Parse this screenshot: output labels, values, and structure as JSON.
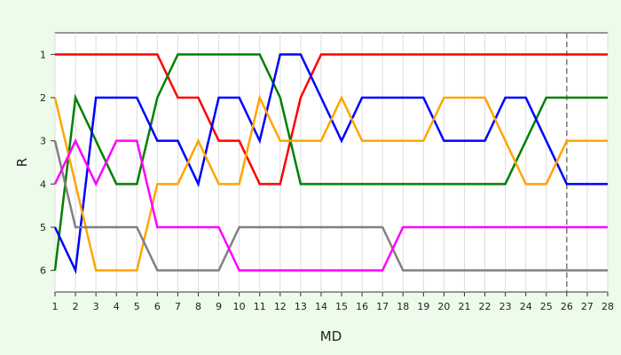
{
  "chart_data": {
    "type": "line",
    "title": "",
    "xlabel": "MD",
    "ylabel": "R",
    "x": [
      1,
      2,
      3,
      4,
      5,
      6,
      7,
      8,
      9,
      10,
      11,
      12,
      13,
      14,
      15,
      16,
      17,
      18,
      19,
      20,
      21,
      22,
      23,
      24,
      25,
      26,
      27,
      28
    ],
    "xlim": [
      1,
      28
    ],
    "ylim": [
      6.5,
      0.5
    ],
    "y_inverted": true,
    "yticks": [
      1,
      2,
      3,
      4,
      5,
      6
    ],
    "grid": {
      "vertical": true,
      "horizontal": false
    },
    "vline": {
      "x": 26,
      "style": "dashed",
      "color": "#777777"
    },
    "series": [
      {
        "color": "#ff0000",
        "values": [
          1,
          1,
          1,
          1,
          1,
          1,
          2,
          2,
          3,
          3,
          4,
          4,
          2,
          1,
          1,
          1,
          1,
          1,
          1,
          1,
          1,
          1,
          1,
          1,
          1,
          1,
          1,
          1
        ]
      },
      {
        "color": "#008000",
        "values": [
          6,
          2,
          3,
          4,
          4,
          2,
          1,
          1,
          1,
          1,
          1,
          2,
          4,
          4,
          4,
          4,
          4,
          4,
          4,
          4,
          4,
          4,
          4,
          3,
          2,
          2,
          2,
          2
        ]
      },
      {
        "color": "#0000ff",
        "values": [
          5,
          6,
          2,
          2,
          2,
          3,
          3,
          4,
          2,
          2,
          3,
          1,
          1,
          2,
          3,
          2,
          2,
          2,
          2,
          3,
          3,
          3,
          2,
          2,
          3,
          4,
          4,
          4
        ]
      },
      {
        "color": "#ffa500",
        "values": [
          2,
          4,
          6,
          6,
          6,
          4,
          4,
          3,
          4,
          4,
          2,
          3,
          3,
          3,
          2,
          3,
          3,
          3,
          3,
          2,
          2,
          2,
          3,
          4,
          4,
          3,
          3,
          3
        ]
      },
      {
        "color": "#808080",
        "values": [
          3,
          5,
          5,
          5,
          5,
          6,
          6,
          6,
          6,
          5,
          5,
          5,
          5,
          5,
          5,
          5,
          5,
          6,
          6,
          6,
          6,
          6,
          6,
          6,
          6,
          6,
          6,
          6
        ]
      },
      {
        "color": "#ff00ff",
        "values": [
          4,
          3,
          4,
          3,
          3,
          5,
          5,
          5,
          5,
          6,
          6,
          6,
          6,
          6,
          6,
          6,
          6,
          5,
          5,
          5,
          5,
          5,
          5,
          5,
          5,
          5,
          5,
          5
        ]
      }
    ]
  }
}
